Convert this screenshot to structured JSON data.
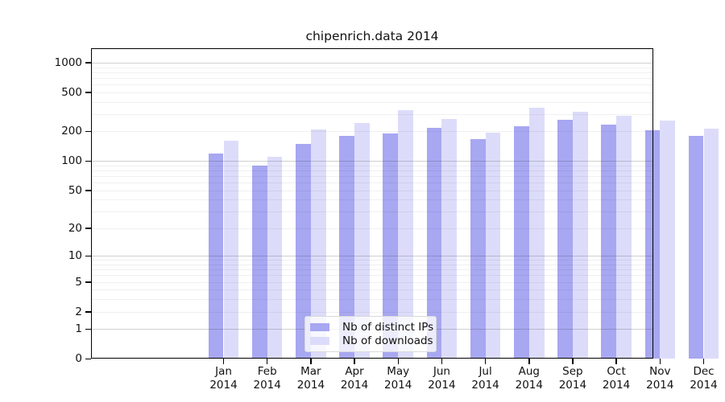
{
  "chart_data": {
    "type": "bar",
    "title": "chipenrich.data 2014",
    "categories": [
      "Jan",
      "Feb",
      "Mar",
      "Apr",
      "May",
      "Jun",
      "Jul",
      "Aug",
      "Sep",
      "Oct",
      "Nov",
      "Dec"
    ],
    "x_tick_second_line": "2014",
    "series": [
      {
        "name": "Nb of distinct IPs",
        "color": "#a7a7f2",
        "values": [
          120,
          90,
          150,
          181,
          190,
          218,
          168,
          227,
          261,
          233,
          205,
          181
        ]
      },
      {
        "name": "Nb of downloads",
        "color": "#dcdcfa",
        "values": [
          160,
          111,
          209,
          246,
          332,
          269,
          193,
          347,
          320,
          287,
          256,
          213
        ]
      }
    ],
    "y_axis": {
      "scale": "log1p",
      "ticks": [
        0,
        1,
        2,
        5,
        10,
        20,
        50,
        100,
        200,
        500,
        1000
      ],
      "top_value": 1400,
      "major_gridline_values": [
        1,
        10,
        100,
        1000
      ],
      "minor_gridlines_per_decade": [
        2,
        3,
        4,
        5,
        6,
        7,
        8,
        9
      ]
    },
    "legend": {
      "position": "bottom-center",
      "entries": [
        "Nb of distinct IPs",
        "Nb of downloads"
      ]
    },
    "grid": "horizontal"
  }
}
